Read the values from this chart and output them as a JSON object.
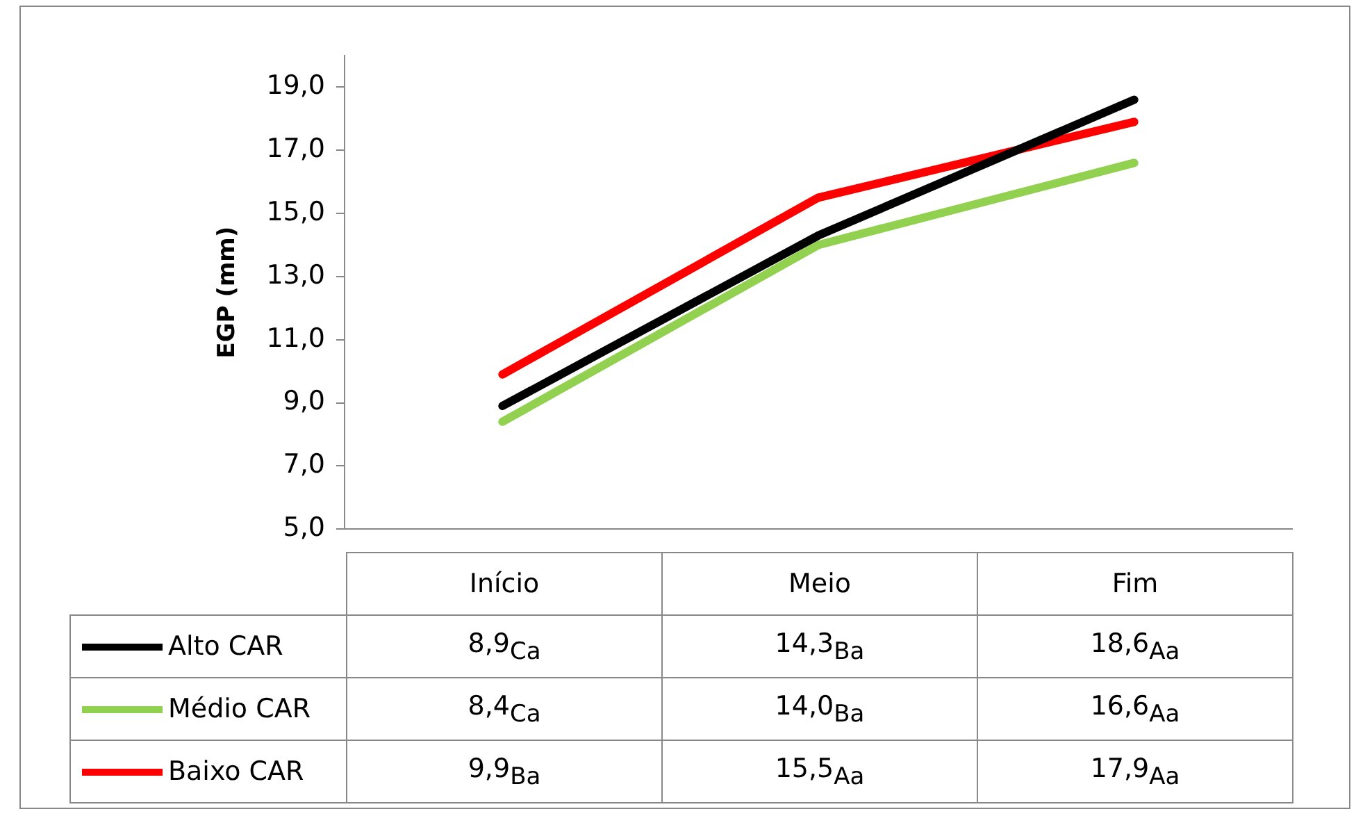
{
  "chart_data": {
    "type": "line",
    "ylabel": "EGP (mm)",
    "categories": [
      "Início",
      "Meio",
      "Fim"
    ],
    "series": [
      {
        "name": "Alto CAR",
        "color": "#000000",
        "values": [
          8.9,
          14.3,
          18.6
        ],
        "value_labels": [
          "8,9$_{Ca}$",
          "14,3$_{Ba}$",
          "18,6$_{Aa}$"
        ]
      },
      {
        "name": "Médio CAR",
        "color": "#92d050",
        "values": [
          8.4,
          14.0,
          16.6
        ],
        "value_labels": [
          "8,4$_{Ca}$",
          "14,0$_{Ba}$",
          "16,6$_{Aa}$"
        ]
      },
      {
        "name": "Baixo CAR",
        "color": "#ff0000",
        "values": [
          9.9,
          15.5,
          17.9
        ],
        "value_labels": [
          "9,9$_{Ba}$",
          "15,5$_{Aa}$",
          "17,9$_{Aa}$"
        ]
      }
    ],
    "ylim": [
      5,
      20
    ],
    "yticks": [
      {
        "value": 5,
        "label": "5,0"
      },
      {
        "value": 7,
        "label": "7,0"
      },
      {
        "value": 9,
        "label": "9,0"
      },
      {
        "value": 11,
        "label": "11,0"
      },
      {
        "value": 13,
        "label": "13,0"
      },
      {
        "value": 15,
        "label": "15,0"
      },
      {
        "value": 17,
        "label": "17,0"
      },
      {
        "value": 19,
        "label": "19,0"
      }
    ],
    "grid": false,
    "legend": "bottom left",
    "marker": "none",
    "line_style": "solid"
  }
}
